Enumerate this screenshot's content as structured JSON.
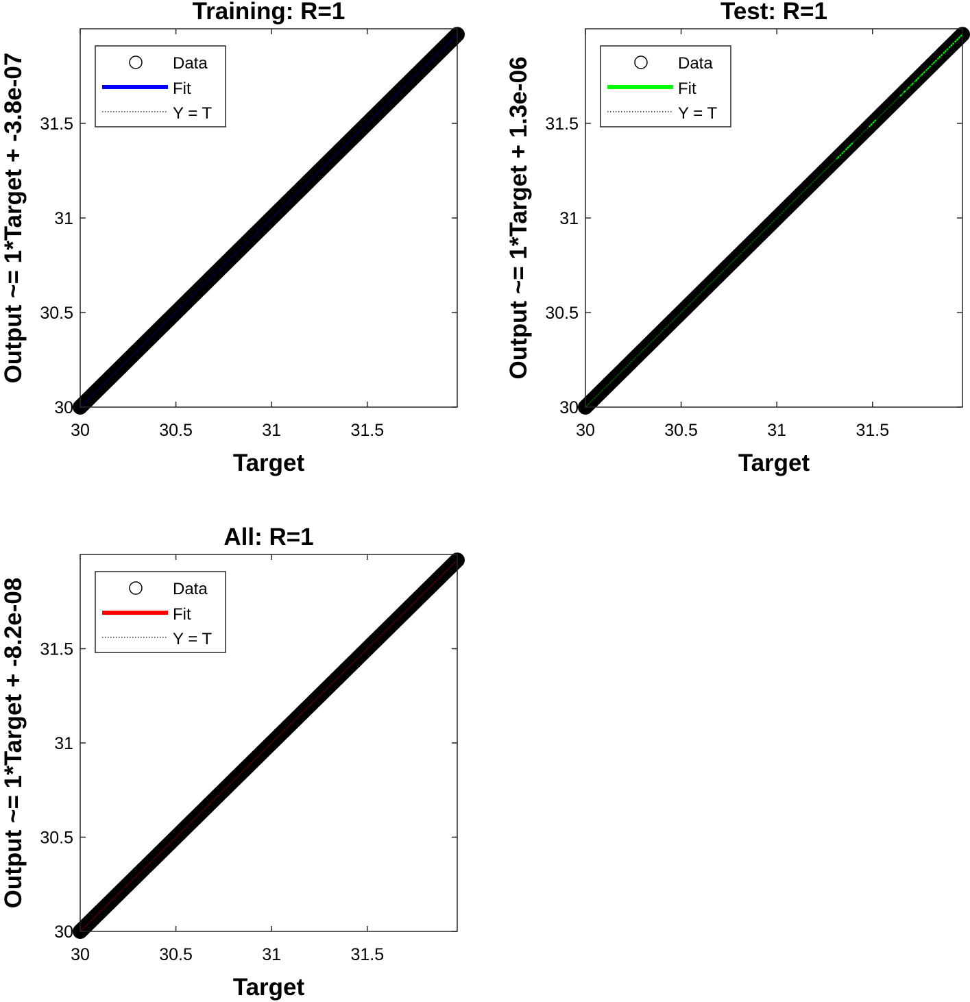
{
  "chart_data": [
    {
      "type": "scatter",
      "title": "Training: R=1",
      "xlabel": "Target",
      "ylabel": "Output ~= 1*Target + -3.8e-07",
      "xlim": [
        30,
        31.97
      ],
      "ylim": [
        30,
        32
      ],
      "xticks": [
        30,
        30.5,
        31,
        31.5
      ],
      "yticks": [
        30,
        30.5,
        31,
        31.5
      ],
      "xtick_labels": [
        "30",
        "30.5",
        "31",
        "31.5"
      ],
      "ytick_labels": [
        "30",
        "30.5",
        "31",
        "31.5"
      ],
      "fit_color": "#0000ff",
      "fit": {
        "slope": 1,
        "intercept": -3.8e-07
      },
      "data_range": [
        30,
        31.97
      ],
      "highlight_points": [],
      "legend": [
        "Data",
        "Fit",
        "Y = T"
      ],
      "legend_position": "top-left",
      "grid": false
    },
    {
      "type": "scatter",
      "title": "Test: R=1",
      "xlabel": "Target",
      "ylabel": "Output ~= 1*Target + 1.3e-06",
      "xlim": [
        30,
        31.97
      ],
      "ylim": [
        30,
        32
      ],
      "xticks": [
        30,
        30.5,
        31,
        31.5
      ],
      "yticks": [
        30,
        30.5,
        31,
        31.5
      ],
      "xtick_labels": [
        "30",
        "30.5",
        "31",
        "31.5"
      ],
      "ytick_labels": [
        "30",
        "30.5",
        "31",
        "31.5"
      ],
      "fit_color": "#00ff00",
      "fit": {
        "slope": 1,
        "intercept": 1.3e-06
      },
      "data_range": [
        30,
        31.97
      ],
      "highlight_points": [
        31.33,
        31.36,
        31.38,
        31.5,
        31.66,
        31.68,
        31.7,
        31.72,
        31.74,
        31.77,
        31.8,
        31.83,
        31.86,
        31.89,
        31.92,
        31.95
      ],
      "legend": [
        "Data",
        "Fit",
        "Y = T"
      ],
      "legend_position": "top-left",
      "grid": false
    },
    {
      "type": "scatter",
      "title": "All: R=1",
      "xlabel": "Target",
      "ylabel": "Output ~= 1*Target + -8.2e-08",
      "xlim": [
        30,
        31.97
      ],
      "ylim": [
        30,
        32
      ],
      "xticks": [
        30,
        30.5,
        31,
        31.5
      ],
      "yticks": [
        30,
        30.5,
        31,
        31.5
      ],
      "xtick_labels": [
        "30",
        "30.5",
        "31",
        "31.5"
      ],
      "ytick_labels": [
        "30",
        "30.5",
        "31",
        "31.5"
      ],
      "fit_color": "#ff0000",
      "fit": {
        "slope": 1,
        "intercept": -8.2e-08
      },
      "data_range": [
        30,
        31.97
      ],
      "highlight_points": [],
      "legend": [
        "Data",
        "Fit",
        "Y = T"
      ],
      "legend_position": "top-left",
      "grid": false
    }
  ]
}
